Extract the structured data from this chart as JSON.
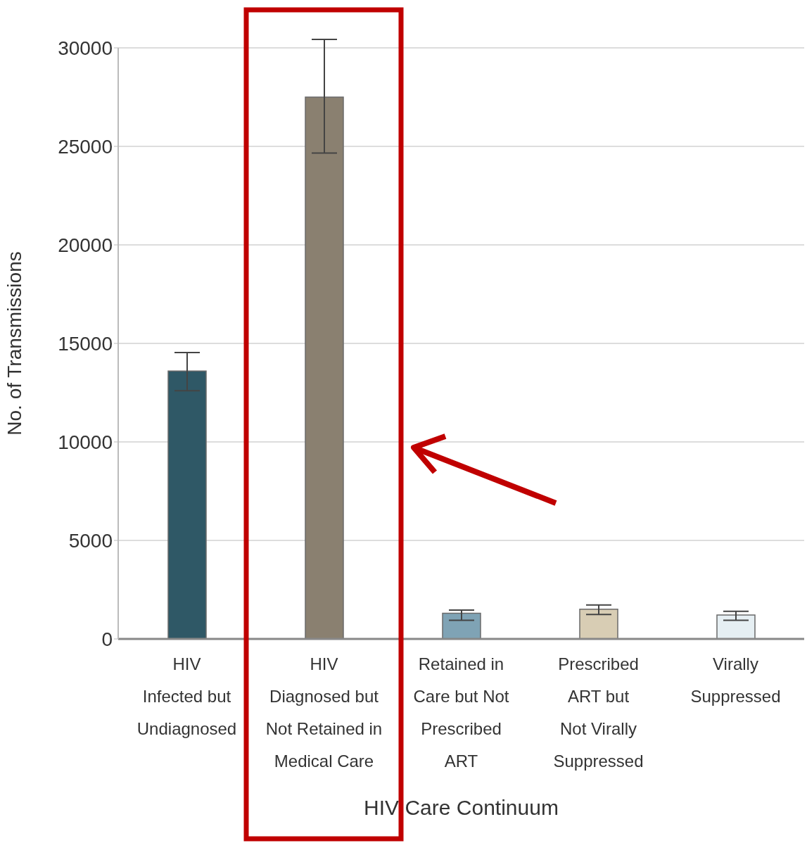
{
  "chart_data": {
    "type": "bar",
    "xlabel": "HIV Care Continuum",
    "ylabel": "No. of Transmissions",
    "categories": [
      "HIV\nInfected but\nUndiagnosed",
      "HIV\nDiagnosed but\nNot Retained in\nMedical Care",
      "Retained in\nCare but Not\nPrescribed\nART",
      "Prescribed\nART but\nNot Virally\nSuppressed",
      "Virally\nSuppressed"
    ],
    "values": [
      13600,
      27500,
      1300,
      1510,
      1210
    ],
    "errors": [
      [
        12600,
        14540
      ],
      [
        24660,
        30430
      ],
      [
        950,
        1460
      ],
      [
        1240,
        1720
      ],
      [
        950,
        1400
      ]
    ],
    "colors": [
      "#2f5866",
      "#8a8070",
      "#7fa3b5",
      "#d8cdb4",
      "#e6eff3"
    ],
    "ylim": [
      0,
      30000
    ],
    "yticks": [
      0,
      5000,
      10000,
      15000,
      20000,
      25000,
      30000
    ],
    "grid": "y"
  }
}
